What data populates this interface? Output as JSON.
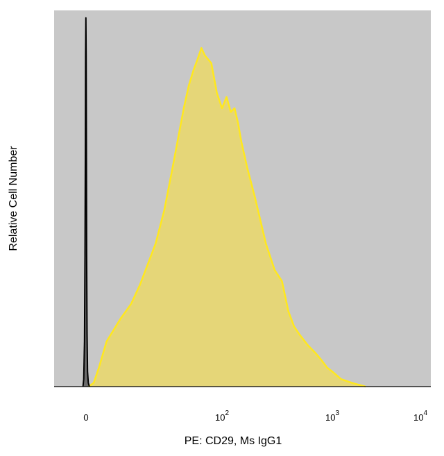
{
  "chart_data": {
    "type": "area",
    "title": "",
    "xlabel": "PE: CD29, Ms IgG1",
    "ylabel": "Relative Cell Number",
    "x_scale": "biexponential (log above 10)",
    "xlim": [
      -10,
      12000
    ],
    "ylim": [
      0,
      1.0
    ],
    "grid": false,
    "legend": "none",
    "x_ticks": [
      {
        "value": 0,
        "base": "0",
        "exp": ""
      },
      {
        "value": 100,
        "base": "10",
        "exp": "2"
      },
      {
        "value": 1000,
        "base": "10",
        "exp": "3"
      },
      {
        "value": 10000,
        "base": "10",
        "exp": "4"
      }
    ],
    "series": [
      {
        "color_fill": "#6b6b6b",
        "color_line": "#000000",
        "x": [
          -1.2,
          -0.9,
          -0.6,
          -0.4,
          -0.25,
          -0.15,
          -0.05,
          0.05,
          0.15,
          0.25,
          0.4,
          0.6,
          0.9,
          1.3
        ],
        "y": [
          0.0,
          0.02,
          0.12,
          0.35,
          0.65,
          0.88,
          0.98,
          0.88,
          0.6,
          0.35,
          0.14,
          0.04,
          0.01,
          0.0
        ]
      },
      {
        "color_fill": "#ead86a",
        "color_line": "#ffe81e",
        "x": [
          1.0,
          3.0,
          5.0,
          8.0,
          12.0,
          15.0,
          18.0,
          25.0,
          30.0,
          35.0,
          40.0,
          45.0,
          50.0,
          55.0,
          60.0,
          65.0,
          70.0,
          80.0,
          90.0,
          100.0,
          110.0,
          120.0,
          130.0,
          140.0,
          150.0,
          170.0,
          200.0,
          250.0,
          300.0,
          350.0,
          400.0,
          450.0,
          500.0,
          600.0,
          700.0,
          800.0,
          900.0,
          1000.0,
          1200.0,
          1500.0,
          2000.0
        ],
        "y": [
          0.0,
          0.01,
          0.05,
          0.12,
          0.18,
          0.22,
          0.27,
          0.38,
          0.47,
          0.57,
          0.66,
          0.74,
          0.8,
          0.84,
          0.87,
          0.9,
          0.88,
          0.86,
          0.78,
          0.74,
          0.77,
          0.73,
          0.74,
          0.7,
          0.65,
          0.58,
          0.5,
          0.38,
          0.31,
          0.28,
          0.2,
          0.16,
          0.14,
          0.11,
          0.09,
          0.07,
          0.05,
          0.04,
          0.02,
          0.01,
          0.0
        ]
      }
    ]
  }
}
